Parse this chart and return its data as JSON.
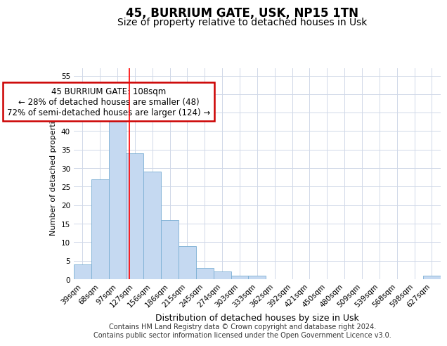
{
  "title1": "45, BURRIUM GATE, USK, NP15 1TN",
  "title2": "Size of property relative to detached houses in Usk",
  "xlabel": "Distribution of detached houses by size in Usk",
  "ylabel": "Number of detached properties",
  "categories": [
    "39sqm",
    "68sqm",
    "97sqm",
    "127sqm",
    "156sqm",
    "186sqm",
    "215sqm",
    "245sqm",
    "274sqm",
    "303sqm",
    "333sqm",
    "362sqm",
    "392sqm",
    "421sqm",
    "450sqm",
    "480sqm",
    "509sqm",
    "539sqm",
    "568sqm",
    "598sqm",
    "627sqm"
  ],
  "values": [
    4,
    27,
    46,
    34,
    29,
    16,
    9,
    3,
    2,
    1,
    1,
    0,
    0,
    0,
    0,
    0,
    0,
    0,
    0,
    0,
    1
  ],
  "bar_color": "#c5d9f1",
  "bar_edgecolor": "#7bafd4",
  "bar_width": 1.0,
  "ylim": [
    0,
    57
  ],
  "yticks": [
    0,
    5,
    10,
    15,
    20,
    25,
    30,
    35,
    40,
    45,
    50,
    55
  ],
  "red_line_x": 2.69,
  "annotation_text": "45 BURRIUM GATE: 108sqm\n← 28% of detached houses are smaller (48)\n72% of semi-detached houses are larger (124) →",
  "annotation_box_color": "#ffffff",
  "annotation_box_edgecolor": "#cc0000",
  "footer1": "Contains HM Land Registry data © Crown copyright and database right 2024.",
  "footer2": "Contains public sector information licensed under the Open Government Licence v3.0.",
  "grid_color": "#d0d8e8",
  "background_color": "#ffffff",
  "title1_fontsize": 12,
  "title2_fontsize": 10,
  "xlabel_fontsize": 9,
  "ylabel_fontsize": 8,
  "tick_fontsize": 7.5,
  "annotation_fontsize": 8.5,
  "footer_fontsize": 7
}
